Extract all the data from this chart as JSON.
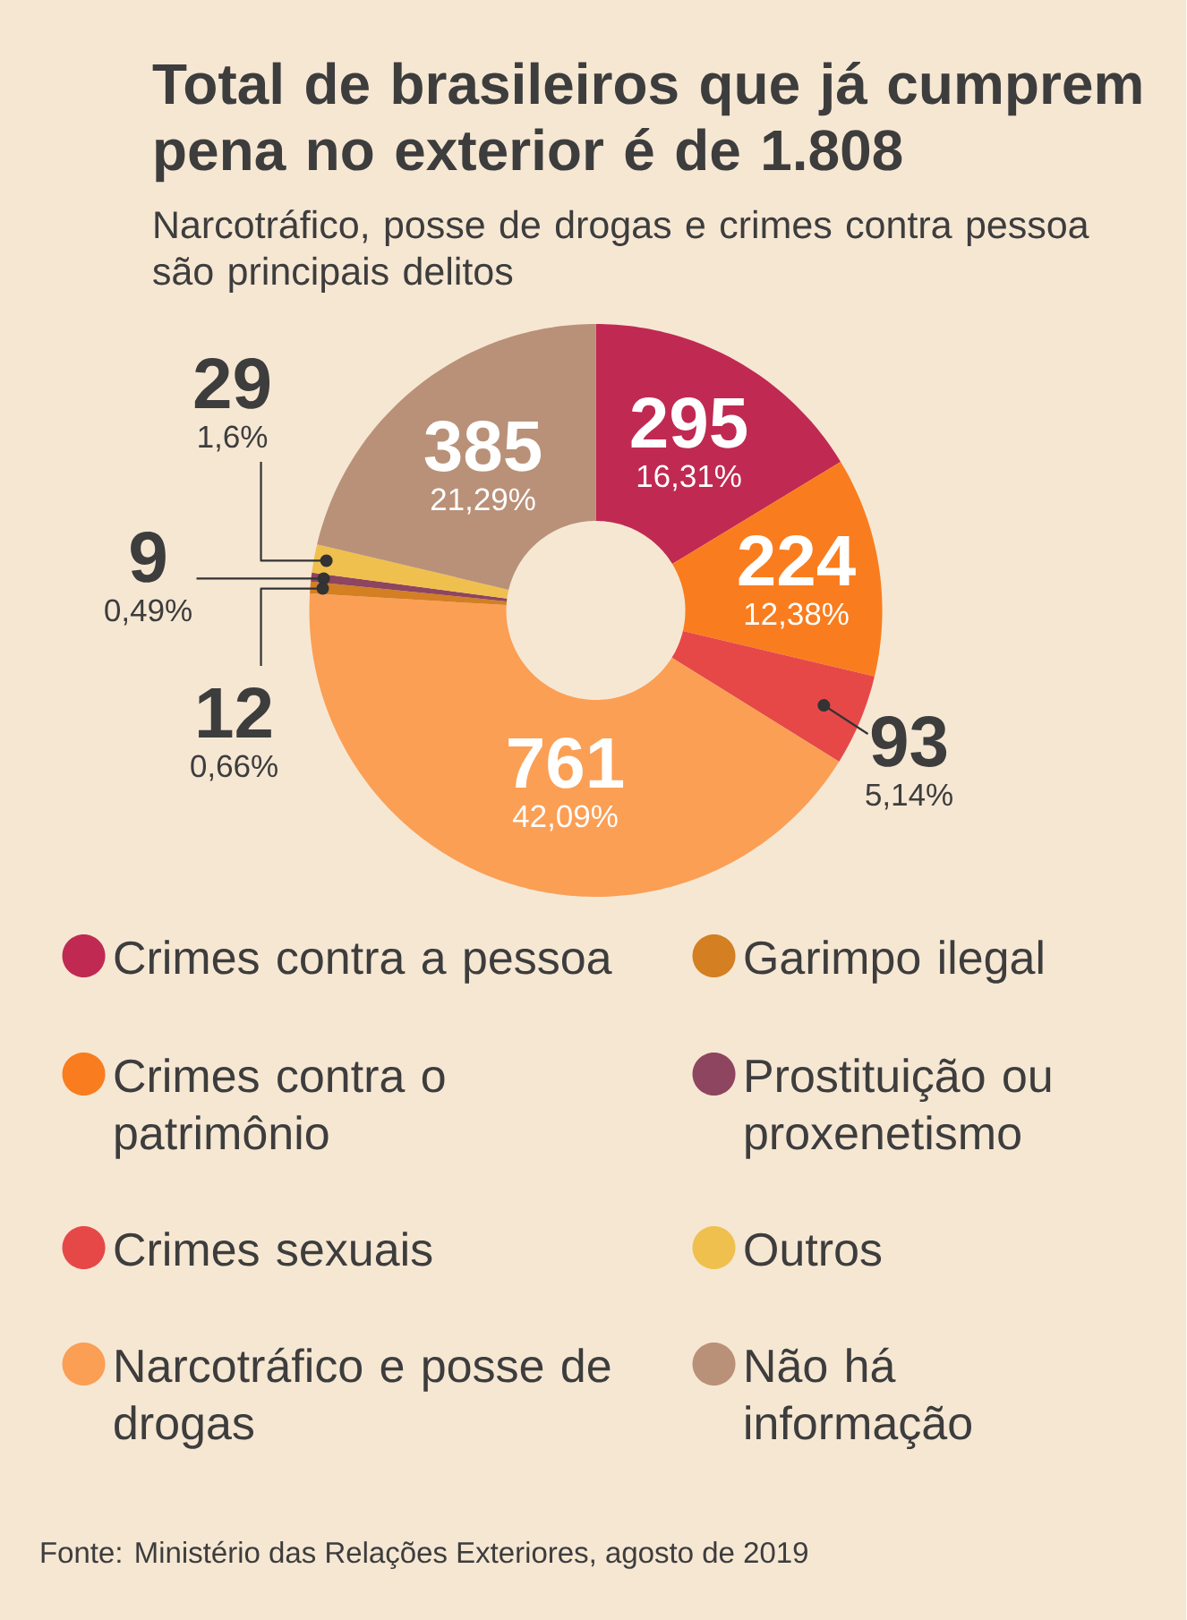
{
  "chart_data": {
    "type": "donut",
    "title": "Total de brasileiros que já cumprem pena no exterior é de 1.808",
    "subtitle": "Narcotráfico, posse de drogas e crimes contra pessoa são principais delitos",
    "categories": [
      "Crimes contra a pessoa",
      "Crimes contra o patrimônio",
      "Crimes sexuais",
      "Narcotráfico e posse de drogas",
      "Garimpo ilegal",
      "Prostituição ou proxenetismo",
      "Outros",
      "Não há informação"
    ],
    "values": [
      295,
      224,
      93,
      761,
      12,
      9,
      29,
      385
    ],
    "colors": [
      "#c02a52",
      "#f97d1e",
      "#e64848",
      "#fb9f55",
      "#d37f22",
      "#8e4560",
      "#f0c04e",
      "#b99178"
    ],
    "value_labels": [
      "**295** 16,31%",
      "**224** 12,38%",
      "**93** 5,14%",
      "**761** 42,09%",
      "**12** 0,66%",
      "**9** 0,49%",
      "**29** 1,6%",
      "**385** 21,29%"
    ],
    "legend": "bottom",
    "annotations": [
      "Fonte: Ministério das Relações Exteriores, agosto de 2019"
    ]
  }
}
